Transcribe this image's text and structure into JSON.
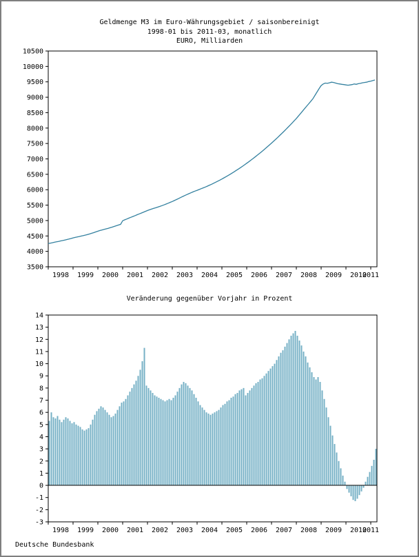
{
  "page": {
    "footer": "Deutsche Bundesbank"
  },
  "chart_data": [
    {
      "type": "line",
      "title_lines": [
        "Geldmenge M3 im Euro-Währungsgebiet / saisonbereinigt",
        "1998-01 bis 2011-03, monatlich",
        "EURO, Milliarden"
      ],
      "x_start": "1998-01",
      "x_end": "2011-03",
      "frequency": "monthly",
      "x_tick_labels": [
        "1998",
        "1999",
        "2000",
        "2001",
        "2002",
        "2003",
        "2004",
        "2005",
        "2006",
        "2007",
        "2008",
        "2009",
        "2010",
        "2011"
      ],
      "ylim": [
        3500,
        10500
      ],
      "y_tick_step": 500,
      "grid": false,
      "line_color": "#33809f",
      "values": [
        4253,
        4268,
        4281,
        4296,
        4310,
        4322,
        4338,
        4352,
        4367,
        4383,
        4399,
        4418,
        4437,
        4453,
        4468,
        4482,
        4497,
        4512,
        4528,
        4546,
        4565,
        4586,
        4608,
        4632,
        4655,
        4676,
        4695,
        4713,
        4730,
        4748,
        4767,
        4788,
        4810,
        4833,
        4856,
        4878,
        4995,
        5023,
        5050,
        5078,
        5105,
        5133,
        5160,
        5188,
        5215,
        5243,
        5270,
        5298,
        5325,
        5349,
        5372,
        5394,
        5415,
        5437,
        5460,
        5484,
        5509,
        5535,
        5562,
        5590,
        5619,
        5649,
        5680,
        5712,
        5745,
        5778,
        5810,
        5841,
        5871,
        5900,
        5928,
        5955,
        5981,
        6007,
        6033,
        6060,
        6088,
        6117,
        6147,
        6178,
        6210,
        6243,
        6277,
        6312,
        6348,
        6385,
        6423,
        6462,
        6502,
        6543,
        6585,
        6628,
        6672,
        6717,
        6763,
        6810,
        6858,
        6907,
        6957,
        7008,
        7060,
        7113,
        7167,
        7222,
        7278,
        7335,
        7393,
        7452,
        7512,
        7573,
        7635,
        7698,
        7762,
        7827,
        7893,
        7960,
        8028,
        8097,
        8167,
        8238,
        8310,
        8390,
        8470,
        8550,
        8630,
        8710,
        8790,
        8870,
        8950,
        9060,
        9170,
        9280,
        9380,
        9430,
        9460,
        9450,
        9470,
        9490,
        9480,
        9460,
        9440,
        9430,
        9420,
        9410,
        9400,
        9390,
        9400,
        9410,
        9430,
        9420,
        9440,
        9450,
        9470,
        9480,
        9490,
        9510,
        9520,
        9540,
        9560
      ]
    },
    {
      "type": "bar",
      "title": "Veränderung gegenüber Vorjahr in Prozent",
      "x_start": "1998-01",
      "x_end": "2011-03",
      "frequency": "monthly",
      "x_tick_labels": [
        "1998",
        "1999",
        "2000",
        "2001",
        "2002",
        "2003",
        "2004",
        "2005",
        "2006",
        "2007",
        "2008",
        "2009",
        "2010",
        "2011"
      ],
      "ylim": [
        -3,
        14
      ],
      "y_tick_step": 1,
      "grid": false,
      "bar_color": "#76b0c6",
      "values": [
        5.3,
        6.0,
        5.6,
        5.5,
        5.7,
        5.4,
        5.2,
        5.4,
        5.6,
        5.5,
        5.3,
        5.1,
        5.2,
        5.0,
        4.9,
        4.8,
        4.6,
        4.5,
        4.6,
        4.7,
        5.0,
        5.4,
        5.8,
        6.1,
        6.3,
        6.5,
        6.4,
        6.2,
        6.0,
        5.8,
        5.6,
        5.7,
        5.9,
        6.2,
        6.5,
        6.8,
        6.9,
        7.1,
        7.4,
        7.7,
        8.0,
        8.3,
        8.6,
        9.0,
        9.5,
        10.2,
        11.3,
        8.2,
        8.0,
        7.8,
        7.6,
        7.4,
        7.3,
        7.2,
        7.1,
        7.0,
        6.9,
        7.0,
        7.1,
        7.0,
        7.2,
        7.4,
        7.7,
        8.0,
        8.3,
        8.5,
        8.4,
        8.2,
        8.0,
        7.8,
        7.5,
        7.2,
        6.9,
        6.6,
        6.4,
        6.2,
        6.0,
        5.9,
        5.8,
        5.9,
        6.0,
        6.1,
        6.2,
        6.4,
        6.6,
        6.7,
        6.9,
        7.0,
        7.2,
        7.3,
        7.5,
        7.6,
        7.8,
        7.9,
        8.0,
        7.4,
        7.6,
        7.8,
        8.0,
        8.2,
        8.4,
        8.5,
        8.7,
        8.8,
        9.0,
        9.2,
        9.4,
        9.6,
        9.8,
        10.0,
        10.3,
        10.6,
        10.9,
        11.1,
        11.4,
        11.7,
        12.0,
        12.3,
        12.5,
        12.7,
        12.3,
        11.9,
        11.5,
        11.0,
        10.6,
        10.1,
        9.7,
        9.3,
        8.9,
        8.7,
        8.9,
        8.5,
        7.8,
        7.1,
        6.4,
        5.6,
        4.9,
        4.1,
        3.4,
        2.7,
        2.0,
        1.4,
        0.8,
        0.3,
        -0.3,
        -0.6,
        -0.9,
        -1.2,
        -1.3,
        -1.1,
        -0.8,
        -0.5,
        -0.2,
        0.3,
        0.7,
        1.1,
        1.6,
        2.1,
        3.0
      ]
    }
  ]
}
